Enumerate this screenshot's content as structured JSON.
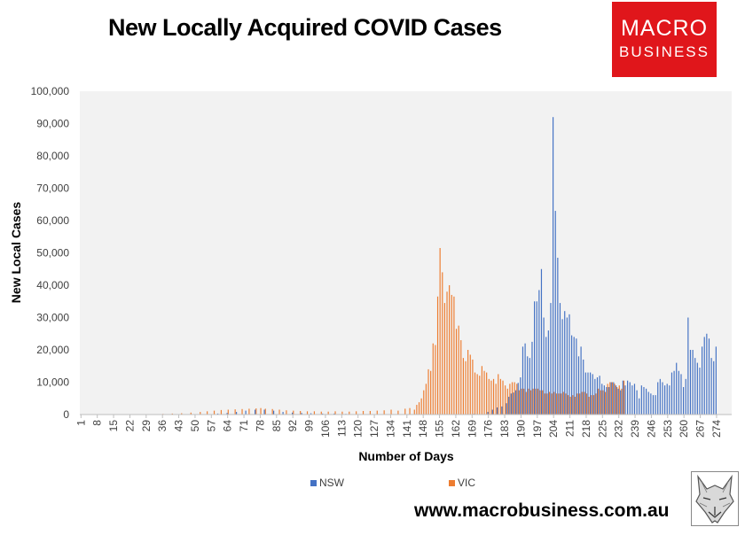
{
  "title": "New Locally Acquired COVID Cases",
  "logo": {
    "line1": "MACRO",
    "line2": "BUSINESS"
  },
  "website": "www.macrobusiness.com.au",
  "colors": {
    "NSW": "#4472c4",
    "VIC": "#ed7d31",
    "plot_bg": "#f2f2f2"
  },
  "chart_data": {
    "type": "bar",
    "title": "New Locally Acquired COVID Cases",
    "xlabel": "Number of Days",
    "ylabel": "New Local Cases",
    "ylim": [
      0,
      100000
    ],
    "yticks": [
      "0",
      "10,000",
      "20,000",
      "30,000",
      "40,000",
      "50,000",
      "60,000",
      "70,000",
      "80,000",
      "90,000",
      "100,000"
    ],
    "xticks": [
      "1",
      "8",
      "15",
      "22",
      "29",
      "36",
      "43",
      "50",
      "57",
      "64",
      "71",
      "78",
      "85",
      "92",
      "99",
      "106",
      "113",
      "120",
      "127",
      "134",
      "141",
      "148",
      "155",
      "162",
      "169",
      "176",
      "183",
      "190",
      "197",
      "204",
      "211",
      "218",
      "225",
      "232",
      "239",
      "246",
      "253",
      "260",
      "267",
      "274"
    ],
    "x_range": [
      1,
      280
    ],
    "grid": false,
    "legend": "bottom",
    "series": [
      {
        "name": "NSW",
        "color": "#4472c4",
        "points": [
          [
            56,
            100
          ],
          [
            60,
            300
          ],
          [
            64,
            500
          ],
          [
            68,
            800
          ],
          [
            72,
            1200
          ],
          [
            76,
            1500
          ],
          [
            80,
            1500
          ],
          [
            84,
            1200
          ],
          [
            88,
            800
          ],
          [
            92,
            600
          ],
          [
            96,
            500
          ],
          [
            100,
            400
          ],
          [
            105,
            300
          ],
          [
            110,
            300
          ],
          [
            115,
            200
          ],
          [
            120,
            150
          ],
          [
            130,
            100
          ],
          [
            140,
            100
          ],
          [
            150,
            100
          ],
          [
            160,
            100
          ],
          [
            170,
            200
          ],
          [
            176,
            800
          ],
          [
            178,
            1500
          ],
          [
            180,
            2200
          ],
          [
            182,
            2500
          ],
          [
            184,
            3500
          ],
          [
            185,
            5500
          ],
          [
            186,
            6500
          ],
          [
            187,
            6800
          ],
          [
            188,
            7500
          ],
          [
            189,
            9800
          ],
          [
            190,
            11500
          ],
          [
            191,
            21000
          ],
          [
            192,
            22000
          ],
          [
            193,
            18000
          ],
          [
            194,
            17500
          ],
          [
            195,
            22500
          ],
          [
            196,
            35000
          ],
          [
            197,
            35000
          ],
          [
            198,
            38500
          ],
          [
            199,
            45000
          ],
          [
            200,
            30000
          ],
          [
            201,
            24000
          ],
          [
            202,
            26000
          ],
          [
            203,
            34500
          ],
          [
            204,
            92000
          ],
          [
            205,
            63000
          ],
          [
            206,
            48500
          ],
          [
            207,
            34500
          ],
          [
            208,
            29500
          ],
          [
            209,
            32000
          ],
          [
            210,
            30000
          ],
          [
            211,
            31000
          ],
          [
            212,
            24500
          ],
          [
            213,
            24000
          ],
          [
            214,
            23500
          ],
          [
            215,
            18000
          ],
          [
            216,
            21000
          ],
          [
            217,
            17000
          ],
          [
            218,
            13000
          ],
          [
            219,
            13000
          ],
          [
            220,
            13000
          ],
          [
            221,
            12500
          ],
          [
            222,
            11000
          ],
          [
            223,
            11500
          ],
          [
            224,
            12000
          ],
          [
            225,
            9500
          ],
          [
            226,
            9000
          ],
          [
            227,
            8500
          ],
          [
            228,
            8500
          ],
          [
            229,
            10000
          ],
          [
            230,
            10000
          ],
          [
            231,
            9000
          ],
          [
            232,
            8000
          ],
          [
            233,
            7500
          ],
          [
            234,
            10500
          ],
          [
            235,
            9000
          ],
          [
            236,
            10500
          ],
          [
            237,
            10000
          ],
          [
            238,
            9000
          ],
          [
            239,
            9500
          ],
          [
            240,
            7500
          ],
          [
            241,
            5000
          ],
          [
            242,
            9000
          ],
          [
            243,
            8500
          ],
          [
            244,
            8000
          ],
          [
            245,
            7000
          ],
          [
            246,
            6500
          ],
          [
            247,
            6000
          ],
          [
            248,
            6000
          ],
          [
            249,
            10000
          ],
          [
            250,
            11000
          ],
          [
            251,
            10000
          ],
          [
            252,
            9000
          ],
          [
            253,
            9500
          ],
          [
            254,
            9000
          ],
          [
            255,
            13000
          ],
          [
            256,
            13500
          ],
          [
            257,
            16000
          ],
          [
            258,
            13500
          ],
          [
            259,
            12500
          ],
          [
            260,
            8500
          ],
          [
            261,
            11000
          ],
          [
            262,
            30000
          ],
          [
            263,
            20000
          ],
          [
            264,
            20000
          ],
          [
            265,
            17500
          ],
          [
            266,
            16000
          ],
          [
            267,
            14500
          ],
          [
            268,
            21000
          ],
          [
            269,
            24000
          ],
          [
            270,
            25000
          ],
          [
            271,
            23500
          ],
          [
            272,
            17500
          ],
          [
            273,
            16500
          ],
          [
            274,
            21000
          ]
        ]
      },
      {
        "name": "VIC",
        "color": "#ed7d31",
        "points": [
          [
            36,
            200
          ],
          [
            40,
            300
          ],
          [
            44,
            400
          ],
          [
            48,
            600
          ],
          [
            52,
            800
          ],
          [
            55,
            1000
          ],
          [
            58,
            1200
          ],
          [
            61,
            1400
          ],
          [
            64,
            1500
          ],
          [
            67,
            1600
          ],
          [
            70,
            1700
          ],
          [
            73,
            1800
          ],
          [
            76,
            1900
          ],
          [
            78,
            2000
          ],
          [
            80,
            1800
          ],
          [
            83,
            1700
          ],
          [
            86,
            1500
          ],
          [
            89,
            1300
          ],
          [
            92,
            1200
          ],
          [
            95,
            1100
          ],
          [
            98,
            1000
          ],
          [
            101,
            1000
          ],
          [
            104,
            900
          ],
          [
            107,
            900
          ],
          [
            110,
            1000
          ],
          [
            113,
            900
          ],
          [
            116,
            900
          ],
          [
            119,
            1000
          ],
          [
            122,
            1100
          ],
          [
            125,
            1100
          ],
          [
            128,
            1200
          ],
          [
            131,
            1300
          ],
          [
            134,
            1500
          ],
          [
            137,
            1200
          ],
          [
            140,
            1800
          ],
          [
            142,
            2000
          ],
          [
            144,
            1500
          ],
          [
            145,
            3000
          ],
          [
            146,
            3800
          ],
          [
            147,
            5000
          ],
          [
            148,
            7500
          ],
          [
            149,
            9500
          ],
          [
            150,
            14000
          ],
          [
            151,
            13500
          ],
          [
            152,
            22000
          ],
          [
            153,
            21500
          ],
          [
            154,
            36500
          ],
          [
            155,
            51500
          ],
          [
            156,
            44000
          ],
          [
            157,
            34500
          ],
          [
            158,
            38000
          ],
          [
            159,
            40000
          ],
          [
            160,
            37000
          ],
          [
            161,
            36500
          ],
          [
            162,
            26500
          ],
          [
            163,
            27500
          ],
          [
            164,
            23000
          ],
          [
            165,
            17500
          ],
          [
            166,
            16500
          ],
          [
            167,
            20000
          ],
          [
            168,
            18500
          ],
          [
            169,
            17000
          ],
          [
            170,
            13000
          ],
          [
            171,
            12500
          ],
          [
            172,
            12000
          ],
          [
            173,
            15000
          ],
          [
            174,
            13500
          ],
          [
            175,
            13000
          ],
          [
            176,
            11000
          ],
          [
            177,
            10500
          ],
          [
            178,
            11000
          ],
          [
            179,
            9500
          ],
          [
            180,
            12500
          ],
          [
            181,
            11000
          ],
          [
            182,
            10500
          ],
          [
            183,
            9000
          ],
          [
            184,
            8000
          ],
          [
            185,
            9500
          ],
          [
            186,
            10000
          ],
          [
            187,
            10000
          ],
          [
            188,
            9500
          ],
          [
            189,
            7500
          ],
          [
            190,
            8000
          ],
          [
            191,
            8000
          ],
          [
            192,
            7000
          ],
          [
            193,
            8000
          ],
          [
            194,
            7500
          ],
          [
            195,
            8000
          ],
          [
            196,
            8000
          ],
          [
            197,
            8000
          ],
          [
            198,
            7500
          ],
          [
            199,
            7500
          ],
          [
            200,
            6500
          ],
          [
            201,
            6500
          ],
          [
            202,
            7000
          ],
          [
            203,
            6500
          ],
          [
            204,
            7000
          ],
          [
            205,
            6500
          ],
          [
            206,
            6500
          ],
          [
            207,
            6500
          ],
          [
            208,
            7000
          ],
          [
            209,
            6500
          ],
          [
            210,
            6000
          ],
          [
            211,
            5500
          ],
          [
            212,
            6000
          ],
          [
            213,
            5500
          ],
          [
            214,
            6500
          ],
          [
            215,
            6500
          ],
          [
            216,
            7000
          ],
          [
            217,
            7000
          ],
          [
            218,
            6500
          ],
          [
            219,
            5500
          ],
          [
            220,
            6000
          ],
          [
            221,
            6000
          ],
          [
            222,
            6500
          ],
          [
            223,
            8000
          ],
          [
            224,
            7500
          ],
          [
            225,
            7500
          ],
          [
            226,
            7000
          ],
          [
            227,
            9500
          ],
          [
            228,
            10000
          ],
          [
            229,
            10000
          ],
          [
            230,
            9500
          ],
          [
            231,
            8500
          ],
          [
            232,
            9000
          ],
          [
            233,
            8000
          ],
          [
            234,
            10500
          ]
        ]
      }
    ]
  }
}
